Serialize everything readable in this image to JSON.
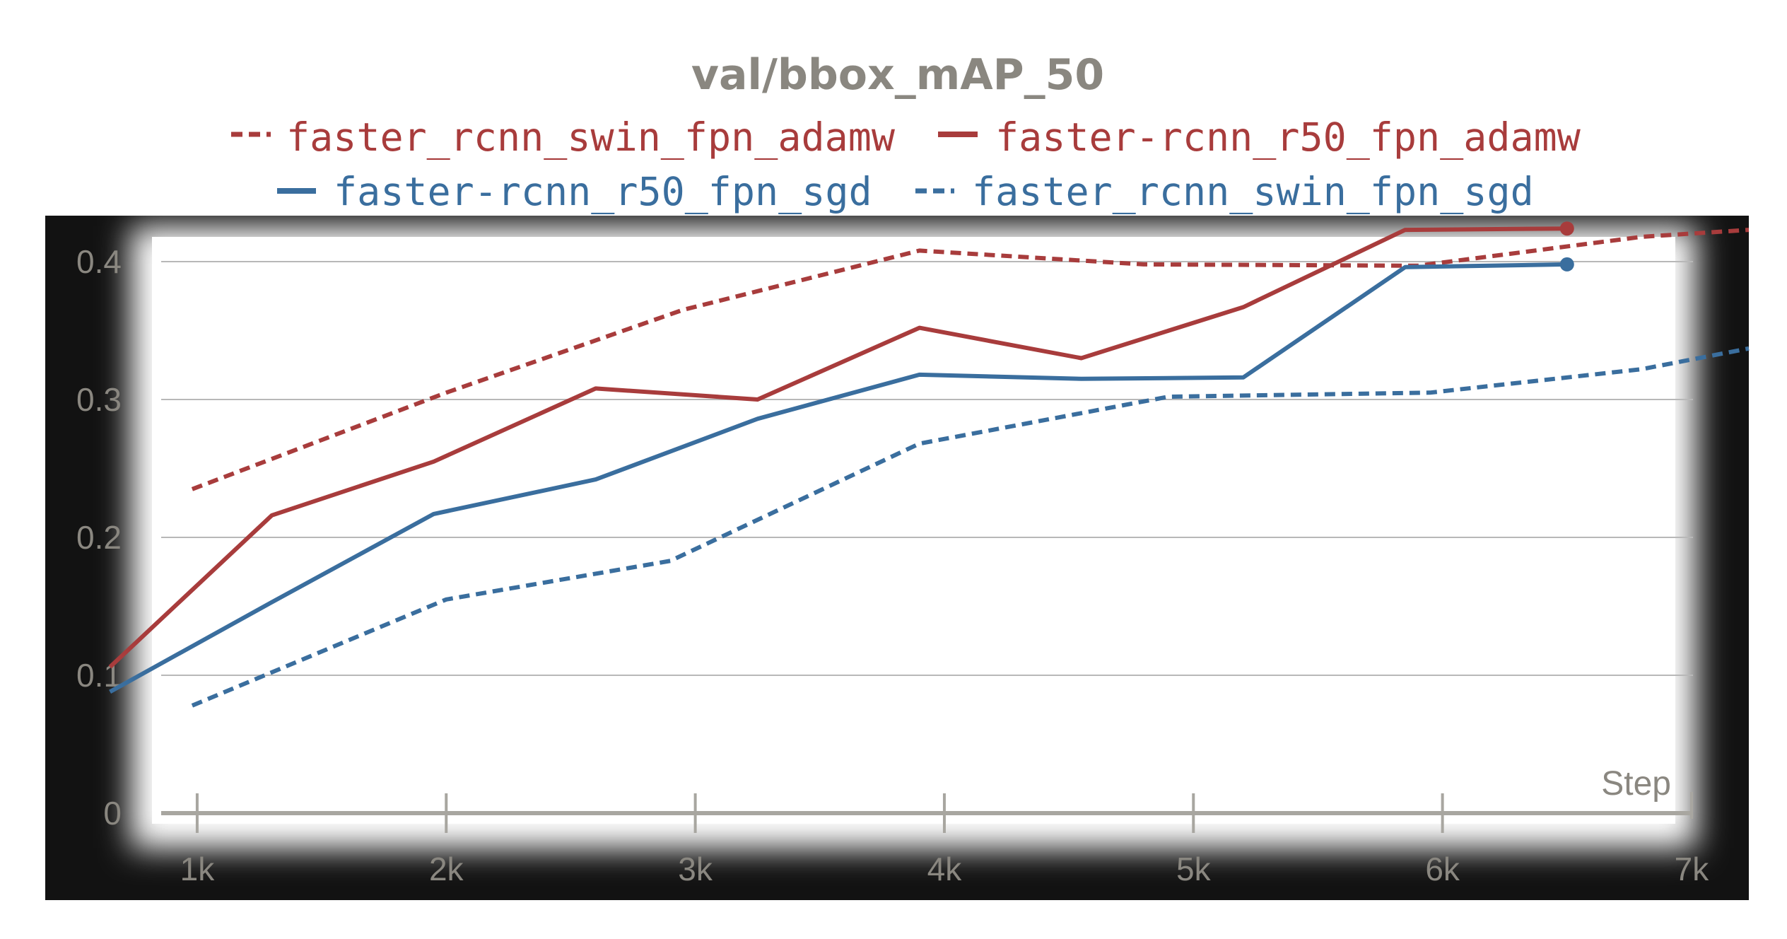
{
  "chart_data": {
    "type": "line",
    "title": "val/bbox_mAP_50",
    "xlabel": "Step",
    "ylabel": "",
    "xlim": [
      390,
      7230
    ],
    "ylim": [
      0,
      0.45
    ],
    "x_ticks": [
      1000,
      2000,
      3000,
      4000,
      5000,
      6000,
      7000
    ],
    "x_tick_labels": [
      "1k",
      "2k",
      "3k",
      "4k",
      "5k",
      "6k",
      "7k"
    ],
    "y_ticks": [
      0,
      0.1,
      0.2,
      0.3,
      0.4
    ],
    "y_tick_labels": [
      "0",
      "0.1",
      "0.2",
      "0.3",
      "0.4"
    ],
    "grid": true,
    "legend_position": "top",
    "colors": {
      "red": "#a83c3c",
      "blue": "#3a6e9e",
      "background": "#121212",
      "grid": "#b8b8b8",
      "text": "#8a8780"
    },
    "series": [
      {
        "name": "faster_rcnn_swin_fpn_adamw",
        "color": "#a83c3c",
        "dashed": true,
        "x": [
          980,
          2000,
          2950,
          3900,
          4800,
          5900,
          6800,
          7230
        ],
        "y": [
          0.235,
          0.305,
          0.365,
          0.408,
          0.398,
          0.397,
          0.418,
          0.423
        ]
      },
      {
        "name": "faster-rcnn_r50_fpn_adamw",
        "color": "#a83c3c",
        "dashed": false,
        "x": [
          650,
          1300,
          1950,
          2600,
          3250,
          3900,
          4550,
          5200,
          5850,
          6500
        ],
        "y": [
          0.106,
          0.216,
          0.255,
          0.308,
          0.3,
          0.352,
          0.33,
          0.367,
          0.423,
          0.424
        ],
        "end_marker": true
      },
      {
        "name": "faster-rcnn_r50_fpn_sgd",
        "color": "#3a6e9e",
        "dashed": false,
        "x": [
          650,
          1300,
          1950,
          2600,
          3250,
          3900,
          4550,
          5200,
          5850,
          6500
        ],
        "y": [
          0.088,
          0.153,
          0.217,
          0.242,
          0.286,
          0.318,
          0.315,
          0.316,
          0.396,
          0.398
        ],
        "end_marker": true
      },
      {
        "name": "faster_rcnn_swin_fpn_sgd",
        "color": "#3a6e9e",
        "dashed": true,
        "x": [
          980,
          2000,
          2900,
          3900,
          4900,
          5950,
          6800,
          7230
        ],
        "y": [
          0.078,
          0.155,
          0.183,
          0.268,
          0.302,
          0.305,
          0.322,
          0.337
        ]
      }
    ]
  }
}
